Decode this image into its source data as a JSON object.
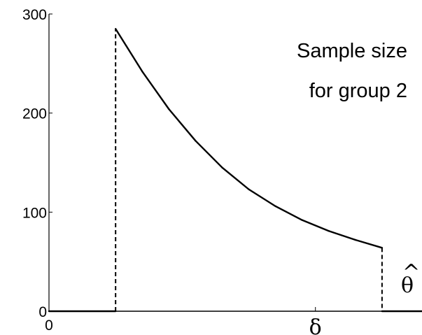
{
  "chart_data": {
    "type": "line",
    "title": "",
    "xlabel": "",
    "ylabel": "",
    "annotation_lines": [
      "Sample size",
      "for group 2"
    ],
    "x_ticks": [
      {
        "label": "0",
        "value": 0
      },
      {
        "label": "δ",
        "value": 1
      }
    ],
    "x_axis_symbol": "θ",
    "x_axis_symbol_accent": "^",
    "y_ticks": [
      0,
      100,
      200,
      300
    ],
    "xlim": [
      0,
      1.4
    ],
    "ylim": [
      0,
      300
    ],
    "grid": false,
    "line_color": "#000000",
    "series": [
      {
        "x": [
          0,
          0.25,
          0.25,
          0.35,
          0.45,
          0.55,
          0.65,
          0.75,
          0.85,
          0.95,
          1.05,
          1.15,
          1.25,
          1.25,
          1.4
        ],
        "y": [
          0,
          0,
          285,
          242,
          204,
          172,
          145,
          123,
          106,
          92,
          81,
          72,
          64,
          0,
          0
        ],
        "style": [
          "solid",
          "dashed",
          "solid",
          "solid",
          "solid",
          "solid",
          "solid",
          "solid",
          "solid",
          "solid",
          "solid",
          "solid",
          "dashed",
          "solid"
        ]
      }
    ]
  }
}
